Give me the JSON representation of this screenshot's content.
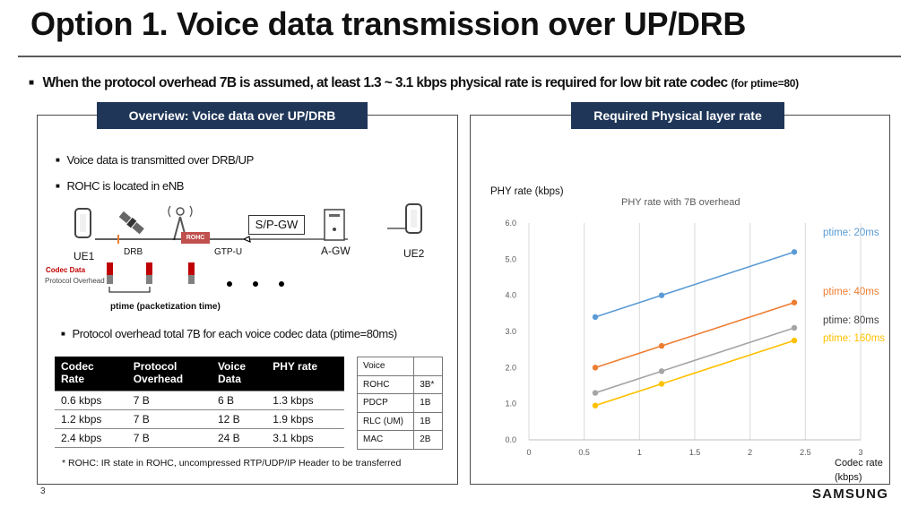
{
  "title": "Option 1. Voice data transmission over UP/DRB",
  "headline": {
    "main": "When the protocol overhead 7B is assumed, at least 1.3 ~ 3.1 kbps physical rate is required for low bit rate codec",
    "small": "(for ptime=80)"
  },
  "left_panel": {
    "title": "Overview: Voice data over UP/DRB",
    "bullets": [
      "Voice data is transmitted over DRB/UP",
      "ROHC is located in eNB"
    ],
    "bullet3": "Protocol overhead total 7B for each voice codec data (ptime=80ms)",
    "diagram": {
      "spgw": "S/P-GW",
      "rohc": "ROHC",
      "agw": "A-GW",
      "ue1": "UE1",
      "ue2": "UE2",
      "drb": "DRB",
      "gtpu": "GTP-U",
      "codec_data": "Codec Data",
      "protocol_overhead": "Protocol Overhead",
      "ptime": "ptime (packetization time)",
      "colors": {
        "codec": "#c00000",
        "overhead": "#808080",
        "rohc_box": "#c0504d"
      }
    },
    "codec_table": {
      "headers": [
        [
          "Codec",
          "Rate"
        ],
        [
          "Protocol",
          "Overhead"
        ],
        [
          "Voice",
          "Data"
        ],
        [
          "PHY rate"
        ]
      ],
      "rows": [
        [
          "0.6 kbps",
          "7 B",
          "6 B",
          "1.3 kbps"
        ],
        [
          "1.2 kbps",
          "7 B",
          "12 B",
          "1.9 kbps"
        ],
        [
          "2.4 kbps",
          "7 B",
          "24 B",
          "3.1 kbps"
        ]
      ]
    },
    "stack_table": {
      "rows": [
        [
          "Voice",
          ""
        ],
        [
          "ROHC",
          "3B*"
        ],
        [
          "PDCP",
          "1B"
        ],
        [
          "RLC (UM)",
          "1B"
        ],
        [
          "MAC",
          "2B"
        ]
      ]
    },
    "footnote": "* ROHC: IR state in ROHC, uncompressed RTP/UDP/IP Header to be transferred"
  },
  "right_panel": {
    "title": "Required Physical layer rate"
  },
  "chart_data": {
    "type": "line",
    "title": "PHY rate with 7B overhead",
    "ylabel": "PHY rate (kbps)",
    "xlabel_lines": [
      "Codec rate",
      "(kbps)"
    ],
    "xlim": [
      0,
      3
    ],
    "ylim": [
      0,
      6
    ],
    "x_ticks": [
      "0",
      "0.5",
      "1",
      "1.5",
      "2",
      "2.5",
      "3"
    ],
    "y_ticks": [
      "0.0",
      "1.0",
      "2.0",
      "3.0",
      "4.0",
      "5.0",
      "6.0"
    ],
    "grid": "vertical",
    "legend": "right",
    "series": [
      {
        "name": "ptime: 20ms",
        "color": "#5b9bd5",
        "x": [
          0.6,
          1.2,
          2.4
        ],
        "y": [
          3.4,
          4.0,
          5.2
        ]
      },
      {
        "name": "ptime: 40ms",
        "color": "#ed7d31",
        "x": [
          0.6,
          1.2,
          2.4
        ],
        "y": [
          2.0,
          2.6,
          3.8
        ]
      },
      {
        "name": "ptime: 80ms",
        "color": "#a5a5a5",
        "x": [
          0.6,
          1.2,
          2.4
        ],
        "y": [
          1.3,
          1.9,
          3.1
        ]
      },
      {
        "name": "ptime: 160ms",
        "color": "#ffc000",
        "x": [
          0.6,
          1.2,
          2.4
        ],
        "y": [
          0.95,
          1.55,
          2.75
        ]
      }
    ]
  },
  "footer": {
    "page": "3",
    "brand": "SAMSUNG"
  }
}
